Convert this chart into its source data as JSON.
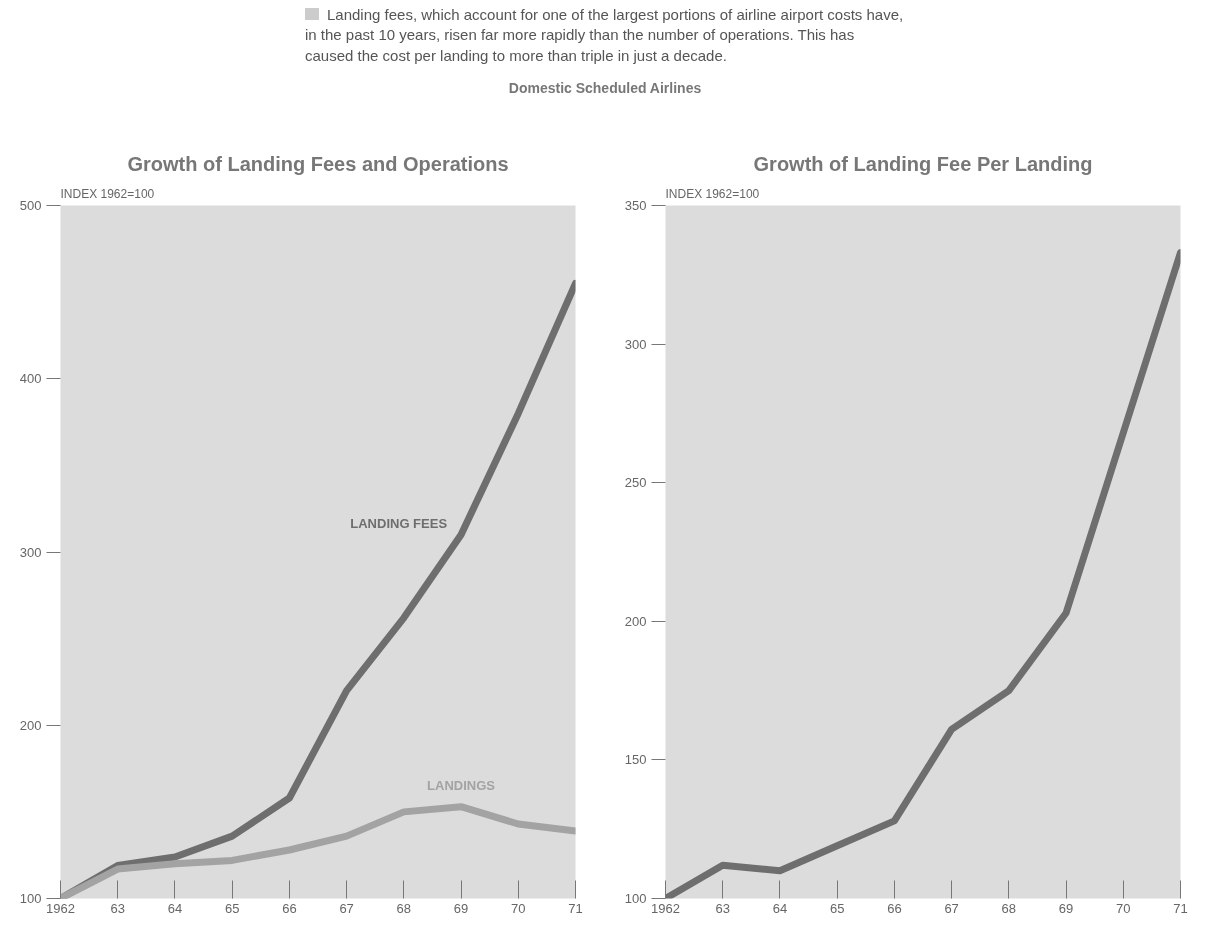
{
  "chart_data": [
    {
      "type": "line",
      "title": "Growth of Landing Fees and Operations",
      "ylabel": "INDEX 1962=100",
      "annotations": [
        "Landing fees, which account for one of the largest portions of airline airport costs have, in the past 10 years, risen far more rapidly than the number of operations. This has caused the cost per landing to more than triple in just a decade.",
        "Domestic Scheduled Airlines"
      ],
      "x": [
        1962,
        1963,
        1964,
        1965,
        1966,
        1967,
        1968,
        1969,
        1970,
        1971
      ],
      "series": [
        {
          "name": "LANDING FEES",
          "color": "#6e6e6e",
          "values": [
            100,
            119,
            124,
            136,
            158,
            220,
            262,
            310,
            380,
            455
          ]
        },
        {
          "name": "LANDINGS",
          "color": "#a3a3a3",
          "values": [
            100,
            117,
            120,
            122,
            128,
            136,
            150,
            153,
            143,
            139
          ]
        }
      ],
      "xlim": [
        1962,
        1971
      ],
      "ylim": [
        100,
        500
      ],
      "yticks": [
        100,
        200,
        300,
        400,
        500
      ],
      "xticks": [
        {
          "value": 1962,
          "label": "1962"
        },
        {
          "value": 1963,
          "label": "63"
        },
        {
          "value": 1964,
          "label": "64"
        },
        {
          "value": 1965,
          "label": "65"
        },
        {
          "value": 1966,
          "label": "66"
        },
        {
          "value": 1967,
          "label": "67"
        },
        {
          "value": 1968,
          "label": "68"
        },
        {
          "value": 1969,
          "label": "69"
        },
        {
          "value": 1970,
          "label": "70"
        },
        {
          "value": 1971,
          "label": "71"
        }
      ],
      "grid": false,
      "legend": false
    },
    {
      "type": "line",
      "title": "Growth of Landing Fee Per Landing",
      "ylabel": "INDEX 1962=100",
      "x": [
        1962,
        1963,
        1964,
        1965,
        1966,
        1967,
        1968,
        1969,
        1970,
        1971
      ],
      "series": [
        {
          "color": "#6e6e6e",
          "values": [
            100,
            112,
            110,
            119,
            128,
            161,
            175,
            203,
            268,
            333
          ]
        }
      ],
      "xlim": [
        1962,
        1971
      ],
      "ylim": [
        100,
        350
      ],
      "yticks": [
        100,
        150,
        200,
        250,
        300,
        350
      ],
      "xticks": [
        {
          "value": 1962,
          "label": "1962"
        },
        {
          "value": 1963,
          "label": "63"
        },
        {
          "value": 1964,
          "label": "64"
        },
        {
          "value": 1965,
          "label": "65"
        },
        {
          "value": 1966,
          "label": "66"
        },
        {
          "value": 1967,
          "label": "67"
        },
        {
          "value": 1968,
          "label": "68"
        },
        {
          "value": 1969,
          "label": "69"
        },
        {
          "value": 1970,
          "label": "70"
        },
        {
          "value": 1971,
          "label": "71"
        }
      ],
      "grid": false,
      "legend": false
    }
  ]
}
